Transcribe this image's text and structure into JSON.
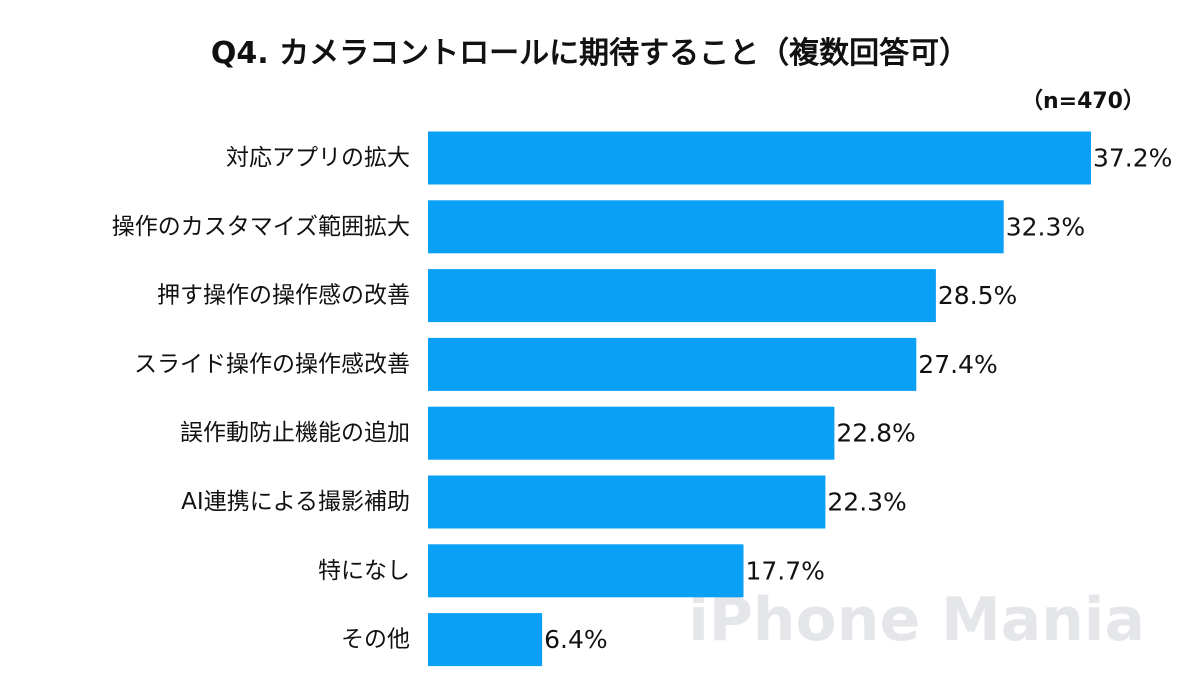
{
  "chart_data": {
    "type": "bar",
    "orientation": "horizontal",
    "title": "Q4. カメラコントロールに期待すること（複数回答可）",
    "sample_size": "（n=470）",
    "categories": [
      "対応アプリの拡大",
      "操作のカスタマイズ範囲拡大",
      "押す操作の操作感の改善",
      "スライド操作の操作感改善",
      "誤作動防止機能の追加",
      "AI連携による撮影補助",
      "特になし",
      "その他"
    ],
    "values": [
      37.2,
      32.3,
      28.5,
      27.4,
      22.8,
      22.3,
      17.7,
      6.4
    ],
    "value_labels": [
      "37.2%",
      "32.3%",
      "28.5%",
      "27.4%",
      "22.8%",
      "22.3%",
      "17.7%",
      "6.4%"
    ],
    "xlim": [
      0,
      37.2
    ],
    "unit": "%",
    "bar_color": "#0aa0f5",
    "grid": false,
    "legend": "none"
  },
  "watermark": "iPhone Mania"
}
